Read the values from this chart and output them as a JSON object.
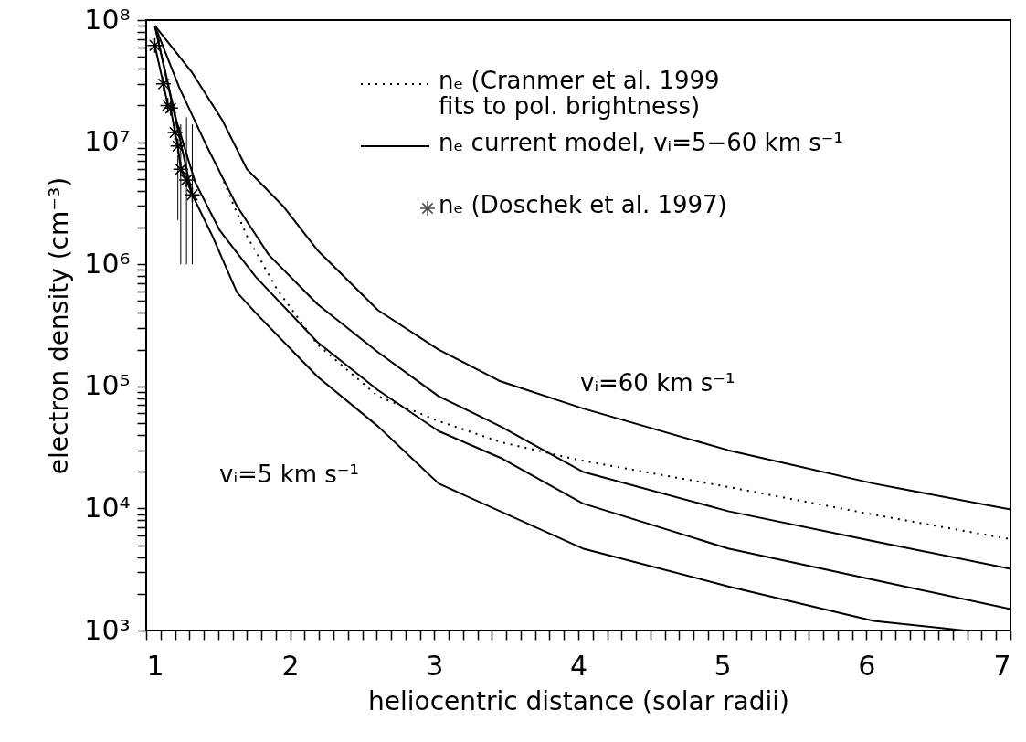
{
  "chart_data": {
    "type": "line",
    "xlabel": "heliocentric distance (solar radii)",
    "ylabel": "electron density (cm⁻³)",
    "log": "y",
    "grid": false,
    "legend": "top right",
    "xlim": [
      1,
      7
    ],
    "ylim": [
      1000,
      100000000
    ],
    "xticks": [
      1,
      2,
      3,
      4,
      5,
      6,
      7,
      {
        "value": 1.1,
        "label": null
      },
      {
        "value": 1.2,
        "label": null
      },
      {
        "value": 1.3,
        "label": null
      },
      {
        "value": 1.4,
        "label": null
      },
      {
        "value": 1.5,
        "label": null
      },
      {
        "value": 1.6,
        "label": null
      },
      {
        "value": 1.7,
        "label": null
      },
      {
        "value": 1.8,
        "label": null
      },
      {
        "value": 1.9,
        "label": null
      },
      {
        "value": 2.1,
        "label": null
      },
      {
        "value": 2.2,
        "label": null
      },
      {
        "value": 2.3,
        "label": null
      },
      {
        "value": 2.4,
        "label": null
      },
      {
        "value": 2.5,
        "label": null
      },
      {
        "value": 2.6,
        "label": null
      },
      {
        "value": 2.7,
        "label": null
      },
      {
        "value": 2.8,
        "label": null
      },
      {
        "value": 2.9,
        "label": null
      },
      {
        "value": 3.1,
        "label": null
      },
      {
        "value": 3.2,
        "label": null
      },
      {
        "value": 3.3,
        "label": null
      },
      {
        "value": 3.4,
        "label": null
      },
      {
        "value": 3.5,
        "label": null
      },
      {
        "value": 3.6,
        "label": null
      },
      {
        "value": 3.7,
        "label": null
      },
      {
        "value": 3.8,
        "label": null
      },
      {
        "value": 3.9,
        "label": null
      },
      {
        "value": 4.1,
        "label": null
      },
      {
        "value": 4.2,
        "label": null
      },
      {
        "value": 4.3,
        "label": null
      },
      {
        "value": 4.4,
        "label": null
      },
      {
        "value": 4.5,
        "label": null
      },
      {
        "value": 4.6,
        "label": null
      },
      {
        "value": 4.7,
        "label": null
      },
      {
        "value": 4.8,
        "label": null
      },
      {
        "value": 4.9,
        "label": null
      },
      {
        "value": 5.1,
        "label": null
      },
      {
        "value": 5.2,
        "label": null
      },
      {
        "value": 5.3,
        "label": null
      },
      {
        "value": 5.4,
        "label": null
      },
      {
        "value": 5.5,
        "label": null
      },
      {
        "value": 5.6,
        "label": null
      },
      {
        "value": 5.7,
        "label": null
      },
      {
        "value": 5.8,
        "label": null
      },
      {
        "value": 5.9,
        "label": null
      },
      {
        "value": 6.1,
        "label": null
      },
      {
        "value": 6.2,
        "label": null
      },
      {
        "value": 6.3,
        "label": null
      },
      {
        "value": 6.4,
        "label": null
      },
      {
        "value": 6.5,
        "label": null
      },
      {
        "value": 6.6,
        "label": null
      },
      {
        "value": 6.7,
        "label": null
      },
      {
        "value": 6.8,
        "label": null
      },
      {
        "value": 6.9,
        "label": null
      }
    ],
    "yticks": [
      {
        "value": 1000,
        "label": "10³"
      },
      {
        "value": 10000,
        "label": "10⁴"
      },
      {
        "value": 100000,
        "label": "10⁵"
      },
      {
        "value": 1000000,
        "label": "10⁶"
      },
      {
        "value": 10000000,
        "label": "10⁷"
      },
      {
        "value": 100000000,
        "label": "10⁸"
      },
      {
        "value": 2000,
        "label": null
      },
      {
        "value": 3000,
        "label": null
      },
      {
        "value": 4000,
        "label": null
      },
      {
        "value": 5000,
        "label": null
      },
      {
        "value": 6000,
        "label": null
      },
      {
        "value": 7000,
        "label": null
      },
      {
        "value": 8000,
        "label": null
      },
      {
        "value": 9000,
        "label": null
      },
      {
        "value": 20000,
        "label": null
      },
      {
        "value": 30000,
        "label": null
      },
      {
        "value": 40000,
        "label": null
      },
      {
        "value": 50000,
        "label": null
      },
      {
        "value": 60000,
        "label": null
      },
      {
        "value": 70000,
        "label": null
      },
      {
        "value": 80000,
        "label": null
      },
      {
        "value": 90000,
        "label": null
      },
      {
        "value": 200000,
        "label": null
      },
      {
        "value": 300000,
        "label": null
      },
      {
        "value": 400000,
        "label": null
      },
      {
        "value": 500000,
        "label": null
      },
      {
        "value": 600000,
        "label": null
      },
      {
        "value": 700000,
        "label": null
      },
      {
        "value": 800000,
        "label": null
      },
      {
        "value": 900000,
        "label": null
      },
      {
        "value": 2000000,
        "label": null
      },
      {
        "value": 3000000,
        "label": null
      },
      {
        "value": 4000000,
        "label": null
      },
      {
        "value": 5000000,
        "label": null
      },
      {
        "value": 6000000,
        "label": null
      },
      {
        "value": 7000000,
        "label": null
      },
      {
        "value": 8000000,
        "label": null
      },
      {
        "value": 9000000,
        "label": null
      },
      {
        "value": 20000000,
        "label": null
      },
      {
        "value": 30000000,
        "label": null
      },
      {
        "value": 40000000,
        "label": null
      },
      {
        "value": 50000000,
        "label": null
      },
      {
        "value": 60000000,
        "label": null
      },
      {
        "value": 70000000,
        "label": null
      },
      {
        "value": 80000000,
        "label": null
      },
      {
        "value": 90000000,
        "label": null
      }
    ],
    "series": [
      {
        "name": "nₑ (Cranmer et al. 1999\n fits to pol. brightness)",
        "color": "#000000",
        "line_style": "dotted",
        "x": [
          1.52,
          1.61,
          1.7,
          1.91,
          2.19,
          2.61,
          3.03,
          3.46,
          4.0,
          5.04,
          6.05,
          7.0
        ],
        "values": [
          5400000.0,
          3000000.0,
          1700000.0,
          620000.0,
          220000.0,
          83000.0,
          52000.0,
          35000.0,
          25000.0,
          15000.0,
          8900.0,
          5600.0
        ]
      },
      {
        "name": "nₑ current model, vᵢ=5−60 km s⁻¹",
        "color": "#000000",
        "line_style": "solid",
        "x": [
          1.06,
          1.32,
          1.53,
          1.7,
          1.95,
          2.19,
          2.61,
          3.03,
          3.46,
          4.03,
          5.04,
          6.05,
          7.0
        ],
        "values": [
          90000000.0,
          37000000.0,
          15000000.0,
          6000000.0,
          3000000.0,
          1300000.0,
          420000.0,
          200000.0,
          110000.0,
          66000.0,
          30000.0,
          16000.0,
          9800.0
        ]
      },
      {
        "color": "#000000",
        "line_style": "solid",
        "x": [
          1.06,
          1.23,
          1.42,
          1.63,
          1.85,
          2.19,
          2.61,
          3.03,
          3.46,
          4.03,
          5.04,
          6.05,
          7.0
        ],
        "values": [
          90000000.0,
          28000000.0,
          9300000.0,
          3000000.0,
          1200000.0,
          470000.0,
          190000.0,
          83000.0,
          47000.0,
          20000.0,
          9500.0,
          5400.0,
          3200.0
        ]
      },
      {
        "color": "#000000",
        "line_style": "solid",
        "x": [
          1.06,
          1.21,
          1.34,
          1.51,
          1.76,
          2.19,
          2.61,
          3.03,
          3.46,
          4.03,
          5.04,
          6.05,
          7.0
        ],
        "values": [
          90000000.0,
          15000000.0,
          4700000.0,
          1900000.0,
          790000.0,
          230000.0,
          93000.0,
          43000.0,
          26000.0,
          11000.0,
          4700.0,
          2600.0,
          1500.0
        ]
      },
      {
        "color": "#000000",
        "line_style": "solid",
        "x": [
          1.06,
          1.32,
          1.46,
          1.63,
          1.76,
          2.19,
          2.61,
          3.03,
          4.03,
          5.04,
          6.05,
          6.68
        ],
        "values": [
          90000000.0,
          3700000.0,
          1700000.0,
          590000.0,
          400000.0,
          120000.0,
          47000.0,
          16000.0,
          4700.0,
          2300.0,
          1200.0,
          1000.0
        ]
      },
      {
        "name": "nₑ (Doschek et al. 1997)",
        "color": "#000000",
        "line_style": "solid",
        "marker": "cross",
        "x": [
          1.06,
          1.12,
          1.15,
          1.17,
          1.2,
          1.22,
          1.24,
          1.28,
          1.32
        ],
        "values": [
          62000000.0,
          30000000.0,
          20000000.0,
          19000000.0,
          12000000.0,
          9300000.0,
          6000000.0,
          4900000.0,
          3700000.0
        ],
        "errors": [
          null,
          null,
          null,
          null,
          null,
          [
            2300000.0,
            7800000.0
          ],
          [
            1000000.0,
            14000000.0
          ],
          [
            1000000.0,
            16000000.0
          ],
          [
            1000000.0,
            14000000.0
          ]
        ]
      }
    ],
    "annotations": [
      "vᵢ=60 km s⁻¹",
      "vᵢ=5 km s⁻¹"
    ]
  }
}
